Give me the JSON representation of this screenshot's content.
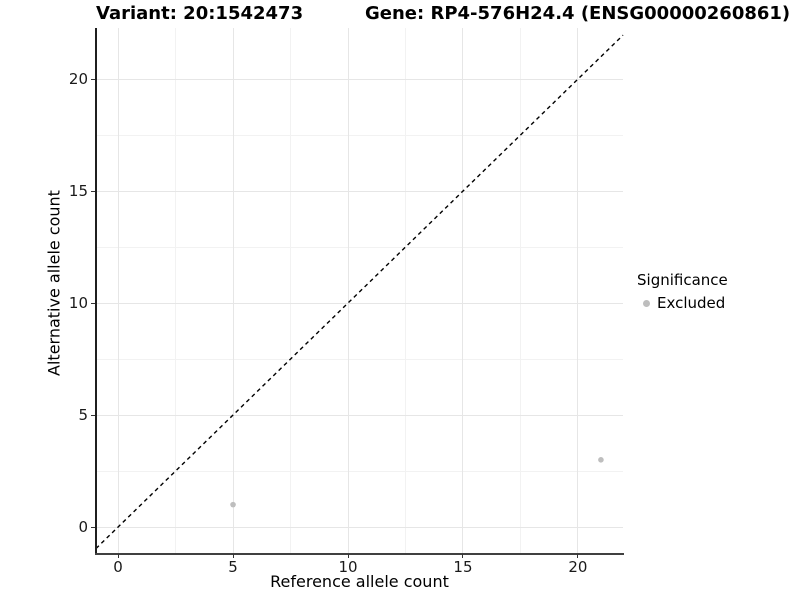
{
  "chart_data": {
    "type": "scatter",
    "title_left": "Variant: 20:1542473",
    "title_right": "Gene: RP4-576H24.4 (ENSG00000260861)",
    "xlabel": "Reference allele count",
    "ylabel": "Alternative allele count",
    "xlim": [
      -0.96,
      21.96
    ],
    "ylim": [
      -1.16,
      22.28
    ],
    "xticks": [
      0,
      5,
      10,
      15,
      20
    ],
    "yticks": [
      0,
      5,
      10,
      15,
      20
    ],
    "xticks_minor": [
      2.5,
      7.5,
      12.5,
      17.5
    ],
    "yticks_minor": [
      2.5,
      7.5,
      12.5,
      17.5
    ],
    "grid": "major+minor",
    "identity_line": {
      "slope": 1,
      "intercept": 0,
      "style": "dashed",
      "color": "#000000"
    },
    "series": [
      {
        "name": "Excluded",
        "color": "#bebebe",
        "points": [
          {
            "x": 5,
            "y": 1
          },
          {
            "x": 21,
            "y": 3
          }
        ]
      }
    ],
    "legend": {
      "title": "Significance",
      "position": "right",
      "entries": [
        {
          "label": "Excluded",
          "color": "#bebebe"
        }
      ]
    }
  },
  "colors": {
    "background": "#ffffff",
    "grid_major": "#e6e6e6",
    "grid_minor": "#f2f2f2",
    "axis_line": "#333333",
    "tick_label": "#1a1a1a",
    "point": "#bebebe"
  }
}
